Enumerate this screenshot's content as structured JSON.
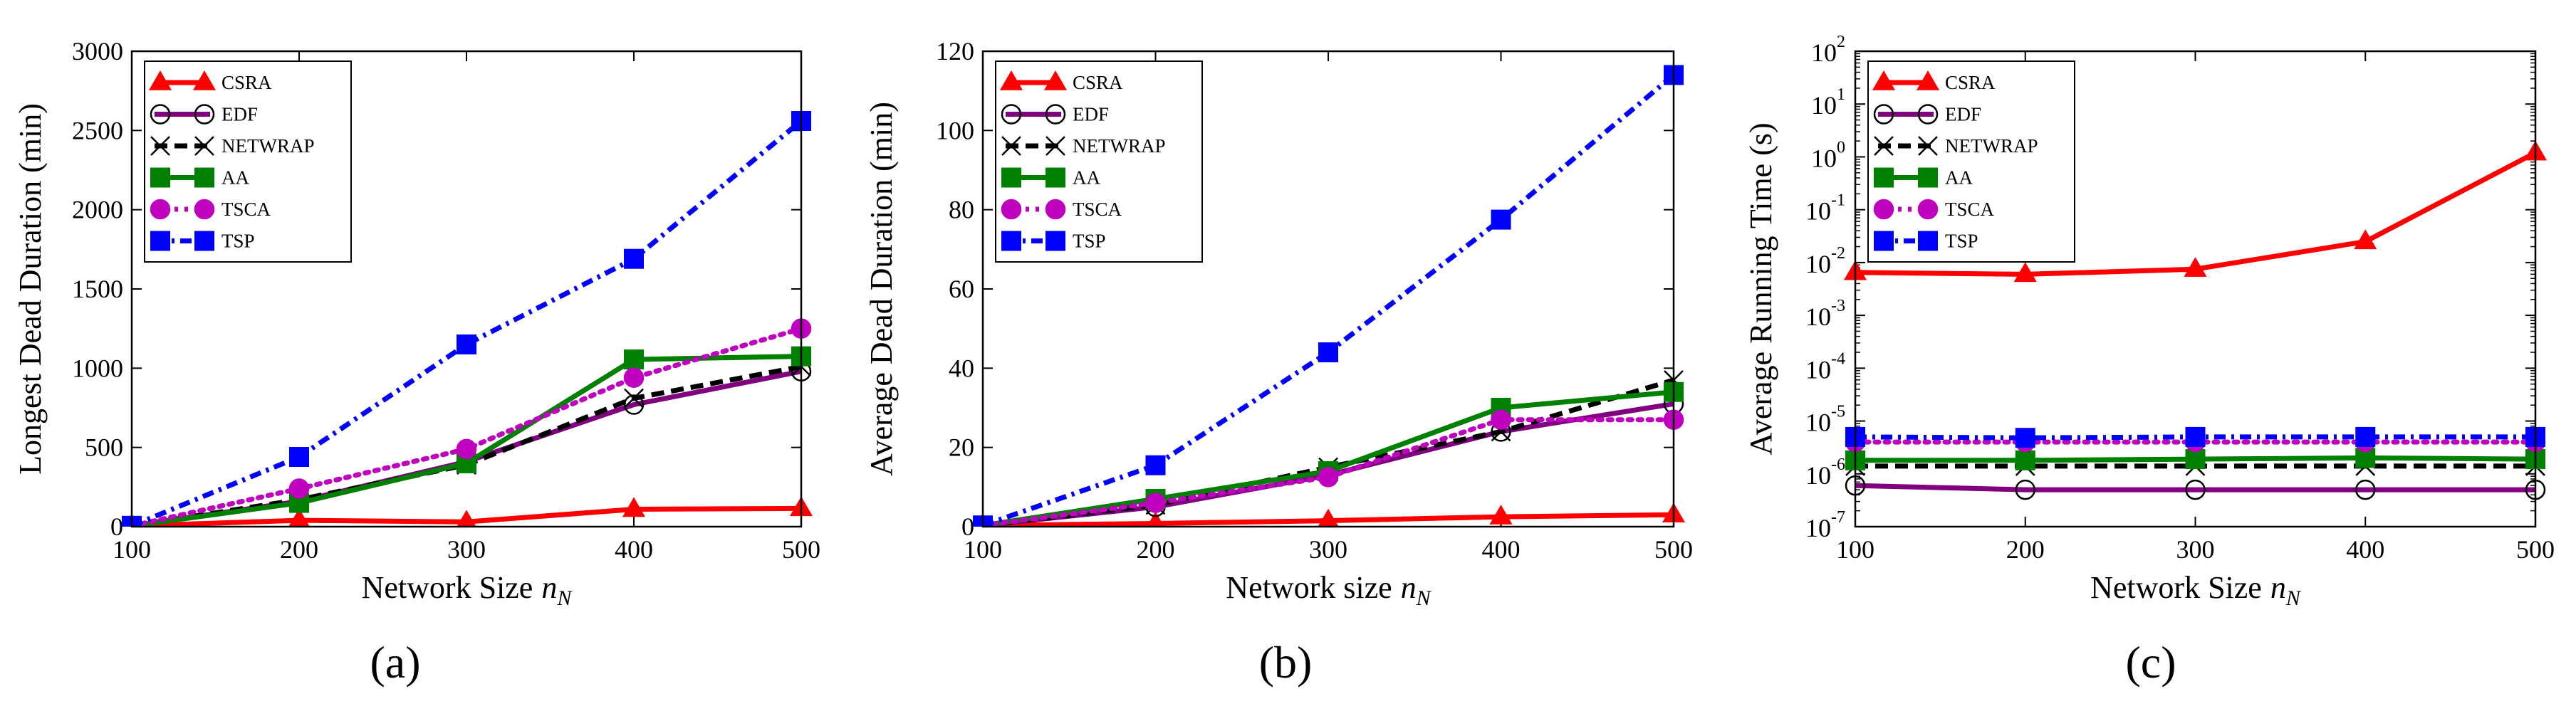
{
  "chart_data": [
    {
      "type": "line",
      "caption": "(a)",
      "xlabel": "Network Size",
      "xlabel_sym": "n",
      "xlabel_sub": "N",
      "ylabel": "Longest Dead Duration (min)",
      "x": [
        100,
        200,
        300,
        400,
        500
      ],
      "xticks": [
        "100",
        "200",
        "300",
        "400",
        "500"
      ],
      "yticks": [
        "0",
        "500",
        "1000",
        "1500",
        "2000",
        "2500",
        "3000"
      ],
      "ylim": [
        0,
        3000
      ],
      "yscale": "linear",
      "series": [
        {
          "name": "CSRA",
          "values": [
            5,
            40,
            30,
            110,
            115
          ]
        },
        {
          "name": "EDF",
          "values": [
            5,
            160,
            410,
            770,
            980
          ]
        },
        {
          "name": "NETWRAP",
          "values": [
            5,
            170,
            390,
            810,
            1010
          ]
        },
        {
          "name": "AA",
          "values": [
            5,
            150,
            400,
            1055,
            1075
          ]
        },
        {
          "name": "TSCA",
          "values": [
            5,
            240,
            490,
            940,
            1250
          ]
        },
        {
          "name": "TSP",
          "values": [
            5,
            440,
            1150,
            1690,
            2560
          ]
        }
      ]
    },
    {
      "type": "line",
      "caption": "(b)",
      "xlabel": "Network size",
      "xlabel_sym": "n",
      "xlabel_sub": "N",
      "ylabel": "Average Dead Duration (min)",
      "x": [
        100,
        200,
        300,
        400,
        500
      ],
      "xticks": [
        "100",
        "200",
        "300",
        "400",
        "500"
      ],
      "yticks": [
        "0",
        "20",
        "40",
        "60",
        "80",
        "100",
        "120"
      ],
      "ylim": [
        0,
        120
      ],
      "yscale": "linear",
      "series": [
        {
          "name": "CSRA",
          "values": [
            0.3,
            0.8,
            1.5,
            2.5,
            3.0
          ]
        },
        {
          "name": "EDF",
          "values": [
            0.3,
            5,
            13,
            24,
            31
          ]
        },
        {
          "name": "NETWRAP",
          "values": [
            0.3,
            5.5,
            15,
            24,
            37
          ]
        },
        {
          "name": "AA",
          "values": [
            0.3,
            7,
            14,
            30,
            34
          ]
        },
        {
          "name": "TSCA",
          "values": [
            0.3,
            6,
            12.5,
            27,
            27
          ]
        },
        {
          "name": "TSP",
          "values": [
            0.3,
            15.5,
            44,
            77.5,
            114
          ]
        }
      ]
    },
    {
      "type": "line",
      "caption": "(c)",
      "xlabel": "Network Size",
      "xlabel_sym": "n",
      "xlabel_sub": "N",
      "ylabel": "Average Running Time (s)",
      "x": [
        100,
        200,
        300,
        400,
        500
      ],
      "xticks": [
        "100",
        "200",
        "300",
        "400",
        "500"
      ],
      "yticks": [
        {
          "base": "10",
          "exp": "-7"
        },
        {
          "base": "10",
          "exp": "-6"
        },
        {
          "base": "10",
          "exp": "-5"
        },
        {
          "base": "10",
          "exp": "-4"
        },
        {
          "base": "10",
          "exp": "-3"
        },
        {
          "base": "10",
          "exp": "-2"
        },
        {
          "base": "10",
          "exp": "-1"
        },
        {
          "base": "10",
          "exp": "0"
        },
        {
          "base": "10",
          "exp": "1"
        },
        {
          "base": "10",
          "exp": "2"
        }
      ],
      "ylim_exp": [
        -7,
        2
      ],
      "yscale": "log",
      "series": [
        {
          "name": "CSRA",
          "values": [
            0.0065,
            0.006,
            0.0075,
            0.025,
            1.2
          ]
        },
        {
          "name": "EDF",
          "values": [
            6e-07,
            5e-07,
            5e-07,
            5e-07,
            5e-07
          ]
        },
        {
          "name": "NETWRAP",
          "values": [
            1.4e-06,
            1.4e-06,
            1.4e-06,
            1.4e-06,
            1.4e-06
          ]
        },
        {
          "name": "AA",
          "values": [
            1.8e-06,
            1.8e-06,
            1.9e-06,
            2e-06,
            1.9e-06
          ]
        },
        {
          "name": "TSCA",
          "values": [
            4e-06,
            4e-06,
            4e-06,
            4e-06,
            4e-06
          ]
        },
        {
          "name": "TSP",
          "values": [
            5e-06,
            4.8e-06,
            5e-06,
            5e-06,
            5e-06
          ]
        }
      ]
    }
  ],
  "styles": {
    "CSRA": {
      "color": "#ff0000",
      "marker": "triangle",
      "dash": "solid",
      "fill": true
    },
    "EDF": {
      "color": "#800080",
      "marker": "circle",
      "dash": "solid",
      "fill": false
    },
    "NETWRAP": {
      "color": "#000000",
      "marker": "x",
      "dash": "dashed",
      "fill": false
    },
    "AA": {
      "color": "#008000",
      "marker": "square",
      "dash": "solid",
      "fill": true
    },
    "TSCA": {
      "color": "#bf00bf",
      "marker": "circle",
      "dash": "dotted",
      "fill": true
    },
    "TSP": {
      "color": "#0000ff",
      "marker": "square",
      "dash": "dashdot",
      "fill": true
    }
  }
}
